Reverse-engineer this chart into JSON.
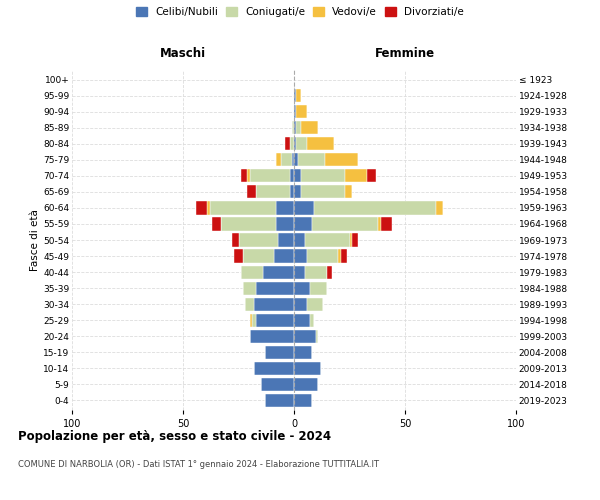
{
  "age_groups": [
    "0-4",
    "5-9",
    "10-14",
    "15-19",
    "20-24",
    "25-29",
    "30-34",
    "35-39",
    "40-44",
    "45-49",
    "50-54",
    "55-59",
    "60-64",
    "65-69",
    "70-74",
    "75-79",
    "80-84",
    "85-89",
    "90-94",
    "95-99",
    "100+"
  ],
  "birth_years": [
    "2019-2023",
    "2014-2018",
    "2009-2013",
    "2004-2008",
    "1999-2003",
    "1994-1998",
    "1989-1993",
    "1984-1988",
    "1979-1983",
    "1974-1978",
    "1969-1973",
    "1964-1968",
    "1959-1963",
    "1954-1958",
    "1949-1953",
    "1944-1948",
    "1939-1943",
    "1934-1938",
    "1929-1933",
    "1924-1928",
    "≤ 1923"
  ],
  "maschi": {
    "celibi": [
      13,
      15,
      18,
      13,
      20,
      17,
      18,
      17,
      14,
      9,
      7,
      8,
      8,
      2,
      2,
      1,
      0,
      0,
      0,
      0,
      0
    ],
    "coniugati": [
      0,
      0,
      0,
      0,
      0,
      2,
      4,
      6,
      10,
      14,
      18,
      25,
      30,
      15,
      18,
      5,
      2,
      1,
      0,
      0,
      0
    ],
    "vedovi": [
      0,
      0,
      0,
      0,
      0,
      1,
      0,
      0,
      0,
      0,
      0,
      0,
      1,
      0,
      1,
      2,
      0,
      0,
      0,
      0,
      0
    ],
    "divorziati": [
      0,
      0,
      0,
      0,
      0,
      0,
      0,
      0,
      0,
      4,
      3,
      4,
      5,
      4,
      3,
      0,
      2,
      0,
      0,
      0,
      0
    ]
  },
  "femmine": {
    "nubili": [
      8,
      11,
      12,
      8,
      10,
      7,
      6,
      7,
      5,
      6,
      5,
      8,
      9,
      3,
      3,
      2,
      1,
      1,
      1,
      1,
      0
    ],
    "coniugate": [
      0,
      0,
      0,
      0,
      1,
      2,
      7,
      8,
      10,
      14,
      20,
      30,
      55,
      20,
      20,
      12,
      5,
      2,
      0,
      0,
      0
    ],
    "vedove": [
      0,
      0,
      0,
      0,
      0,
      0,
      0,
      0,
      0,
      1,
      1,
      1,
      3,
      3,
      10,
      15,
      12,
      8,
      5,
      2,
      0
    ],
    "divorziate": [
      0,
      0,
      0,
      0,
      0,
      0,
      0,
      0,
      2,
      3,
      3,
      5,
      0,
      0,
      4,
      0,
      0,
      0,
      0,
      0,
      0
    ]
  },
  "colors": {
    "celibi_nubili": "#4b76b5",
    "coniugati": "#c8d9a8",
    "vedovi": "#f5c040",
    "divorziati": "#cc1111"
  },
  "xlim": 100,
  "title": "Popolazione per età, sesso e stato civile - 2024",
  "subtitle": "COMUNE DI NARBOLIA (OR) - Dati ISTAT 1° gennaio 2024 - Elaborazione TUTTITALIA.IT",
  "ylabel_left": "Fasce di età",
  "xlabel_left": "Maschi",
  "xlabel_right": "Femmine",
  "bg_color": "#ffffff",
  "grid_color": "#dddddd"
}
